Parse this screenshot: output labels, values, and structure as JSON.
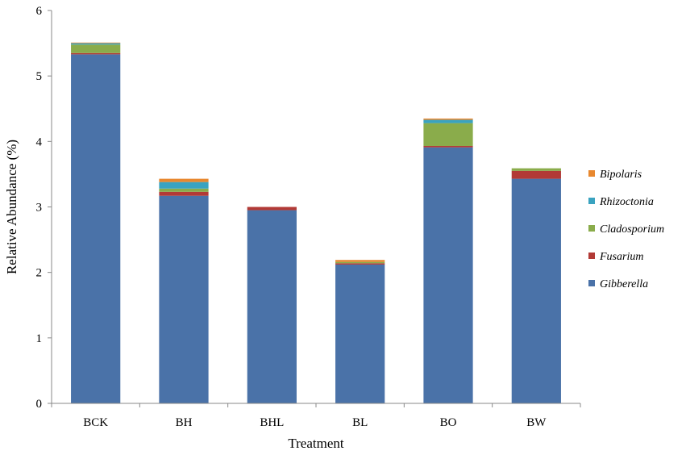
{
  "chart_data": {
    "type": "bar",
    "stacked": true,
    "title": "",
    "xlabel": "Treatment",
    "ylabel": "Relative Abundance (%)",
    "ylim": [
      0,
      6
    ],
    "yticks": [
      "0",
      "1",
      "2",
      "3",
      "4",
      "5",
      "6"
    ],
    "grid": false,
    "legend_position": "right",
    "categories": [
      "BCK",
      "BH",
      "BHL",
      "BL",
      "BO",
      "BW"
    ],
    "series": [
      {
        "name": "Gibberella",
        "color": "#4a72a8",
        "values": [
          5.33,
          3.17,
          2.95,
          2.12,
          3.91,
          3.43
        ]
      },
      {
        "name": "Fusarium",
        "color": "#b23a36",
        "values": [
          0.02,
          0.06,
          0.05,
          0.02,
          0.02,
          0.12
        ]
      },
      {
        "name": "Cladosporium",
        "color": "#8aac4b",
        "values": [
          0.13,
          0.05,
          0.0,
          0.02,
          0.35,
          0.04
        ]
      },
      {
        "name": "Rhizoctonia",
        "color": "#3aa3c0",
        "values": [
          0.02,
          0.1,
          0.0,
          0.0,
          0.05,
          0.0
        ]
      },
      {
        "name": "Bipolaris",
        "color": "#e8882f",
        "values": [
          0.01,
          0.05,
          0.0,
          0.03,
          0.02,
          0.0
        ]
      }
    ],
    "legend_order": [
      "Bipolaris",
      "Rhizoctonia",
      "Cladosporium",
      "Fusarium",
      "Gibberella"
    ]
  }
}
